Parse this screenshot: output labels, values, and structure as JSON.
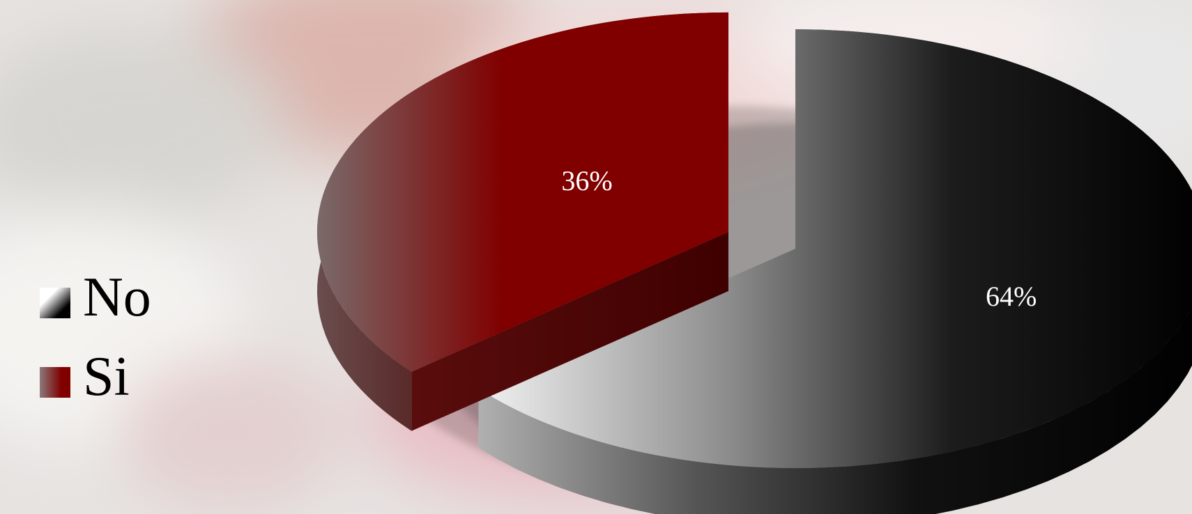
{
  "chart_data": {
    "type": "pie",
    "style": "3d-exploded",
    "categories": [
      "No",
      "Si"
    ],
    "values": [
      64,
      36
    ],
    "data_labels": [
      "64%",
      "36%"
    ],
    "colors": [
      "#000000",
      "#800000"
    ],
    "legend_position": "left",
    "title": ""
  },
  "legend": {
    "items": [
      {
        "label": "No",
        "color": "#000000"
      },
      {
        "label": "Si",
        "color": "#800000"
      }
    ]
  }
}
